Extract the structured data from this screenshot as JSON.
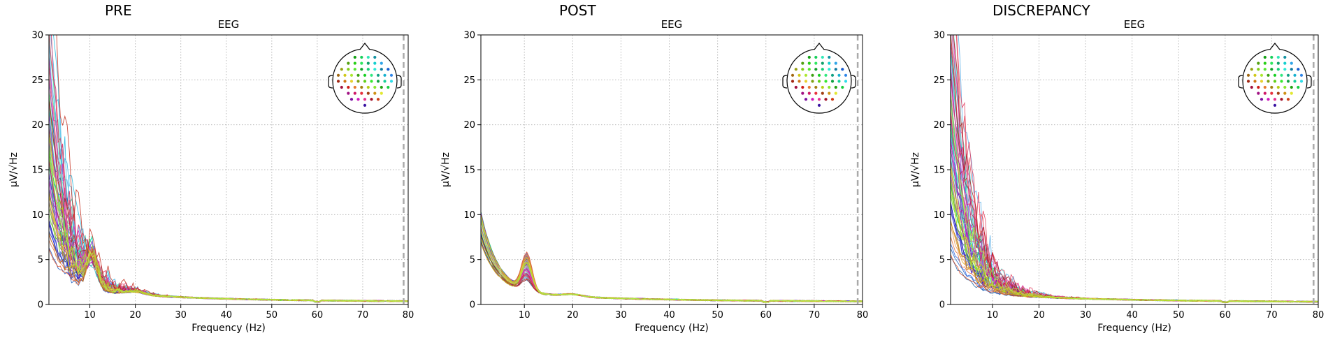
{
  "chart_data": [
    {
      "type": "line",
      "panel_title": "PRE",
      "title": "EEG",
      "xlabel": "Frequency (Hz)",
      "ylabel": "µV/√Hz",
      "xlim": [
        1,
        80
      ],
      "ylim": [
        0,
        30
      ],
      "xticks": [
        10,
        20,
        30,
        40,
        50,
        60,
        70,
        80
      ],
      "yticks": [
        0,
        5,
        10,
        15,
        20,
        25,
        30
      ],
      "grid": true,
      "marker_line_x": 79,
      "inset": "sensor-topomap top-right",
      "series_mode": "pre",
      "channel_count": 60
    },
    {
      "type": "line",
      "panel_title": "POST",
      "title": "EEG",
      "xlabel": "Frequency (Hz)",
      "ylabel": "µV/√Hz",
      "xlim": [
        1,
        80
      ],
      "ylim": [
        0,
        30
      ],
      "xticks": [
        10,
        20,
        30,
        40,
        50,
        60,
        70,
        80
      ],
      "yticks": [
        0,
        5,
        10,
        15,
        20,
        25,
        30
      ],
      "grid": true,
      "marker_line_x": 79,
      "inset": "sensor-topomap top-right",
      "series_mode": "post",
      "channel_count": 60
    },
    {
      "type": "line",
      "panel_title": "DISCREPANCY",
      "title": "EEG",
      "xlabel": "Frequency (Hz)",
      "ylabel": "µV/√Hz",
      "xlim": [
        1,
        80
      ],
      "ylim": [
        0,
        30
      ],
      "xticks": [
        10,
        20,
        30,
        40,
        50,
        60,
        70,
        80
      ],
      "yticks": [
        0,
        5,
        10,
        15,
        20,
        25,
        30
      ],
      "grid": true,
      "marker_line_x": 79,
      "inset": "sensor-topomap top-right",
      "series_mode": "diff",
      "channel_count": 60
    }
  ]
}
